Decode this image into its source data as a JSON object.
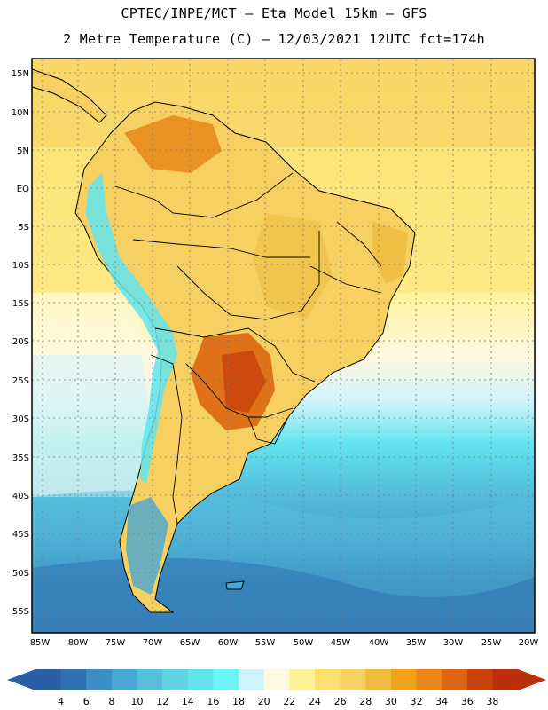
{
  "header": {
    "line1": "CPTEC/INPE/MCT —  Eta Model 15km — GFS",
    "line2": "2 Metre Temperature (C) — 12/03/2021 12UTC fct=174h"
  },
  "axes": {
    "lat_labels": [
      "15N",
      "10N",
      "5N",
      "EQ",
      "5S",
      "10S",
      "15S",
      "20S",
      "25S",
      "30S",
      "35S",
      "40S",
      "45S",
      "50S",
      "55S"
    ],
    "lon_labels": [
      "85W",
      "80W",
      "75W",
      "70W",
      "65W",
      "60W",
      "55W",
      "50W",
      "45W",
      "40W",
      "35W",
      "30W",
      "25W",
      "20W"
    ]
  },
  "legend": {
    "values": [
      "4",
      "6",
      "8",
      "10",
      "12",
      "14",
      "16",
      "18",
      "20",
      "22",
      "24",
      "26",
      "28",
      "30",
      "32",
      "34",
      "36",
      "38"
    ],
    "colors": [
      "#2a5fa5",
      "#2e72b3",
      "#3c8fc6",
      "#47a6d2",
      "#55bfdc",
      "#5fd2e4",
      "#62e4ee",
      "#6cf4f6",
      "#cdf3fb",
      "#fff8e0",
      "#fff296",
      "#fbe070",
      "#f6d061",
      "#efbc41",
      "#f0a218",
      "#e8861a",
      "#dd6612",
      "#c8430a",
      "#b9300a"
    ],
    "low_arrow_color": "#2a5fa5",
    "high_arrow_color": "#b9300a"
  }
}
